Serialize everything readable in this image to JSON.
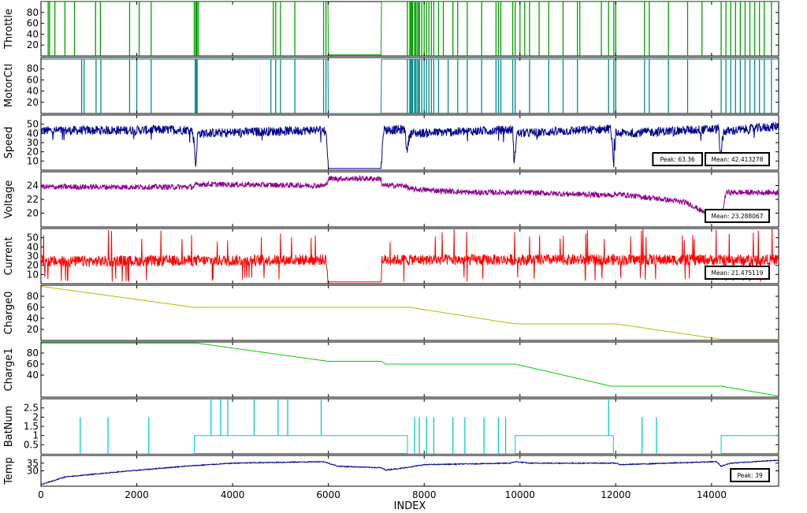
{
  "chart_data": {
    "type": "line",
    "xlabel": "INDEX",
    "xlim": [
      0,
      15400
    ],
    "xticks": [
      0,
      2000,
      4000,
      6000,
      8000,
      10000,
      12000,
      14000
    ],
    "grid": false,
    "panels": [
      {
        "ylabel": "Throttle",
        "ylim": [
          0,
          100
        ],
        "yticks": [
          20,
          40,
          60,
          80
        ],
        "color": "#00a000",
        "style": "spiky-high",
        "base": 100,
        "low": 0,
        "points": [
          [
            0,
            100
          ],
          [
            5990,
            100
          ],
          [
            6000,
            2
          ],
          [
            7100,
            2
          ],
          [
            7110,
            100
          ],
          [
            15400,
            100
          ]
        ],
        "spikes": [
          150,
          180,
          290,
          500,
          700,
          1140,
          1240,
          1850,
          2050,
          2300,
          3200,
          3230,
          3240,
          3260,
          3290,
          4850,
          4900,
          5000,
          5300,
          5900,
          5950,
          7650,
          7700,
          7720,
          7740,
          7760,
          7800,
          7820,
          7850,
          7880,
          7900,
          7950,
          8000,
          8050,
          8100,
          8150,
          8200,
          8300,
          8400,
          8600,
          8700,
          8900,
          9200,
          9500,
          9550,
          9600,
          9850,
          9900,
          10000,
          10100,
          10200,
          10400,
          10600,
          10900,
          11200,
          11250,
          11700,
          11850,
          11960,
          12000,
          12600,
          12700,
          13100,
          13500,
          13800,
          14200,
          14300,
          14400,
          14500,
          14600,
          14700,
          14800,
          14900,
          15000,
          15100,
          15250
        ]
      },
      {
        "ylabel": "MotorCtl",
        "ylim": [
          0,
          100
        ],
        "yticks": [
          20,
          40,
          60,
          80
        ],
        "color": "#008b8b",
        "style": "spiky-high",
        "base": 97,
        "low": 0,
        "points": [
          [
            0,
            97
          ],
          [
            5990,
            97
          ],
          [
            6000,
            0
          ],
          [
            7100,
            0
          ],
          [
            7110,
            97
          ],
          [
            15400,
            97
          ]
        ],
        "spikes": [
          850,
          900,
          1150,
          1250,
          1850,
          2000,
          2300,
          3220,
          3240,
          3260,
          4800,
          4900,
          5000,
          5300,
          5900,
          5950,
          7650,
          7700,
          7720,
          7740,
          7760,
          7800,
          7820,
          7850,
          7880,
          7900,
          7950,
          8000,
          8050,
          8100,
          8150,
          8200,
          8300,
          8500,
          8700,
          8900,
          9200,
          9500,
          9550,
          9600,
          9850,
          9900,
          10200,
          10600,
          10900,
          11200,
          11850,
          11960,
          12000,
          12600,
          12700,
          13100,
          13500,
          14200,
          14300,
          14400,
          14500,
          14600,
          14700,
          14800,
          14900,
          15000,
          15100,
          15250
        ]
      },
      {
        "ylabel": "Speed",
        "ylim": [
          0,
          60
        ],
        "yticks": [
          10,
          20,
          30,
          40,
          50
        ],
        "color": "#00008b",
        "style": "noisy",
        "noise": 5,
        "points": [
          [
            0,
            43
          ],
          [
            3150,
            44
          ],
          [
            3200,
            30
          ],
          [
            3230,
            2
          ],
          [
            3270,
            40
          ],
          [
            5950,
            44
          ],
          [
            6000,
            2
          ],
          [
            7100,
            2
          ],
          [
            7150,
            44
          ],
          [
            7600,
            44
          ],
          [
            7640,
            20
          ],
          [
            7700,
            40
          ],
          [
            9850,
            44
          ],
          [
            9880,
            5
          ],
          [
            9930,
            40
          ],
          [
            11900,
            45
          ],
          [
            11960,
            3
          ],
          [
            12000,
            40
          ],
          [
            14150,
            45
          ],
          [
            14190,
            10
          ],
          [
            14250,
            42
          ],
          [
            15400,
            48
          ]
        ],
        "annotations": [
          "Peak: 63.36",
          "Mean: 42.413278"
        ]
      },
      {
        "ylabel": "Voltage",
        "ylim": [
          18,
          26
        ],
        "yticks": [
          20,
          22,
          24
        ],
        "color": "#8b008b",
        "style": "noisy",
        "noise": 0.4,
        "points": [
          [
            0,
            23.8
          ],
          [
            3200,
            23.8
          ],
          [
            3250,
            24.2
          ],
          [
            5950,
            24.0
          ],
          [
            6000,
            25.0
          ],
          [
            7100,
            25.0
          ],
          [
            7120,
            24.0
          ],
          [
            7600,
            24.0
          ],
          [
            7700,
            23.5
          ],
          [
            9000,
            23.0
          ],
          [
            10000,
            23.0
          ],
          [
            11900,
            22.6
          ],
          [
            12000,
            22.8
          ],
          [
            13000,
            22.0
          ],
          [
            13500,
            21.5
          ],
          [
            14000,
            19.5
          ],
          [
            14200,
            19.0
          ],
          [
            14300,
            23.0
          ],
          [
            15400,
            23.0
          ]
        ],
        "annotations": [
          "Mean: 23.288067"
        ]
      },
      {
        "ylabel": "Current",
        "ylim": [
          0,
          60
        ],
        "yticks": [
          10,
          20,
          30,
          40,
          50
        ],
        "color": "#ff0000",
        "style": "noisy",
        "noise": 6,
        "points": [
          [
            0,
            24
          ],
          [
            5950,
            26
          ],
          [
            6000,
            2
          ],
          [
            7100,
            2
          ],
          [
            7120,
            26
          ],
          [
            15400,
            26
          ]
        ],
        "annotations": [
          "Mean: 21.475119"
        ]
      },
      {
        "ylabel": "Charge0",
        "ylim": [
          0,
          100
        ],
        "yticks": [
          20,
          40,
          60,
          80
        ],
        "color": "#b8b800",
        "style": "line",
        "points": [
          [
            0,
            98
          ],
          [
            3200,
            60
          ],
          [
            7700,
            60
          ],
          [
            9900,
            30
          ],
          [
            12000,
            30
          ],
          [
            14200,
            2
          ],
          [
            15400,
            2
          ]
        ]
      },
      {
        "ylabel": "Charge1",
        "ylim": [
          0,
          100
        ],
        "yticks": [
          40,
          60,
          80
        ],
        "color": "#00cc00",
        "style": "line",
        "points": [
          [
            0,
            98
          ],
          [
            3250,
            98
          ],
          [
            6000,
            65
          ],
          [
            7100,
            65
          ],
          [
            7200,
            60
          ],
          [
            9900,
            60
          ],
          [
            11900,
            20
          ],
          [
            14200,
            20
          ],
          [
            15400,
            2
          ]
        ]
      },
      {
        "ylabel": "BatNum",
        "ylim": [
          0,
          3
        ],
        "yticks": [
          0.5,
          1,
          1.5,
          2,
          2.5
        ],
        "color": "#00cccc",
        "style": "step",
        "points": [
          [
            0,
            0
          ],
          [
            3200,
            0
          ],
          [
            3200,
            1
          ],
          [
            7650,
            1
          ],
          [
            7650,
            0
          ],
          [
            9900,
            0
          ],
          [
            9900,
            1
          ],
          [
            11950,
            1
          ],
          [
            11950,
            0
          ],
          [
            14200,
            0
          ],
          [
            14200,
            1
          ],
          [
            15400,
            1
          ]
        ],
        "spikes": [
          [
            820,
            2
          ],
          [
            1400,
            2
          ],
          [
            2250,
            2
          ],
          [
            3550,
            3
          ],
          [
            3750,
            3
          ],
          [
            3900,
            3
          ],
          [
            4450,
            3
          ],
          [
            4950,
            3
          ],
          [
            5150,
            3
          ],
          [
            5850,
            3
          ],
          [
            7800,
            2
          ],
          [
            7900,
            2
          ],
          [
            8050,
            2
          ],
          [
            8200,
            2
          ],
          [
            8600,
            2
          ],
          [
            8850,
            2
          ],
          [
            9250,
            2
          ],
          [
            9550,
            2
          ],
          [
            9700,
            2
          ],
          [
            11850,
            3
          ],
          [
            12550,
            2
          ],
          [
            12850,
            2
          ]
        ]
      },
      {
        "ylabel": "Temp",
        "ylim": [
          20,
          40
        ],
        "yticks": [
          30
        ],
        "ytick_labels": [
          "30"
        ],
        "yticks_display": [
          [
            30,
            "30"
          ],
          [
            35,
            "35"
          ]
        ],
        "color": "#00008b",
        "style": "noisy",
        "noise": 0.3,
        "points": [
          [
            0,
            21
          ],
          [
            500,
            26
          ],
          [
            1500,
            29
          ],
          [
            3000,
            33
          ],
          [
            4000,
            35
          ],
          [
            5900,
            36
          ],
          [
            6200,
            33
          ],
          [
            7100,
            32
          ],
          [
            7200,
            30.5
          ],
          [
            7600,
            32
          ],
          [
            8000,
            34
          ],
          [
            9800,
            35
          ],
          [
            9900,
            36
          ],
          [
            10200,
            35
          ],
          [
            12000,
            35
          ],
          [
            12100,
            34
          ],
          [
            14100,
            36
          ],
          [
            14200,
            33
          ],
          [
            14400,
            35
          ],
          [
            15400,
            37
          ]
        ],
        "annotations": [
          "Peak: 39"
        ]
      }
    ]
  }
}
